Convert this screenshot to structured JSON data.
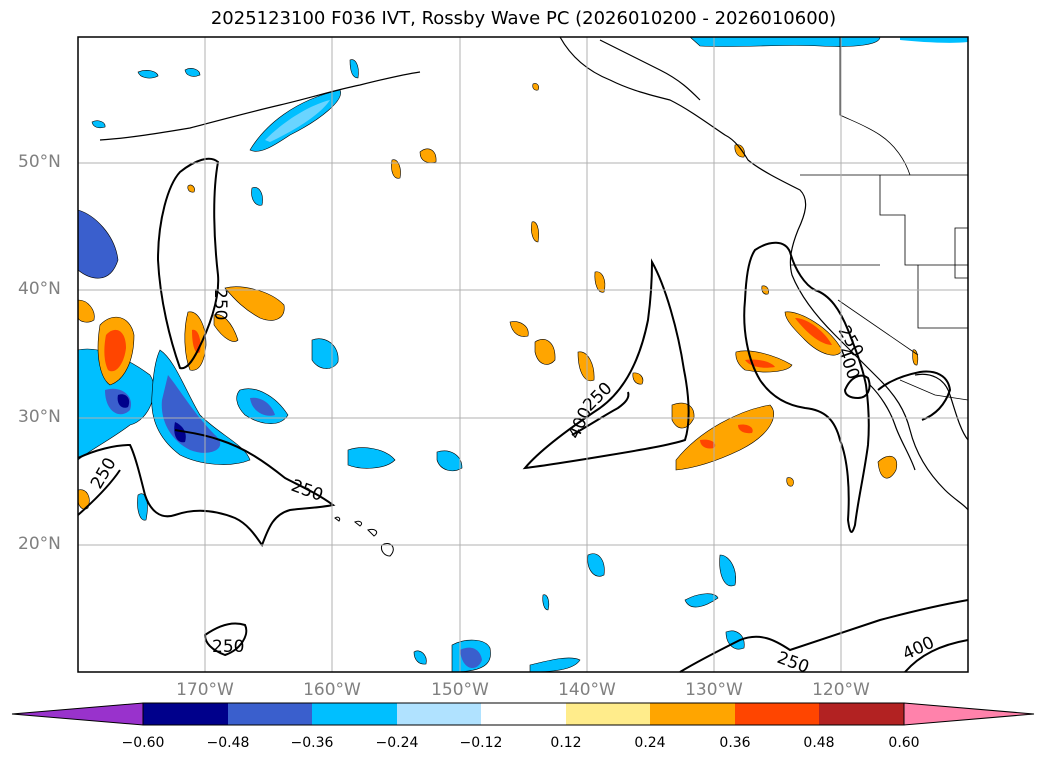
{
  "title": "2025123100 F036 IVT, Rossby Wave PC (2026010200 - 2026010600)",
  "map": {
    "lat_labels": [
      "50°N",
      "40°N",
      "30°N",
      "20°N"
    ],
    "lon_labels": [
      "170°W",
      "160°W",
      "150°W",
      "140°W",
      "130°W",
      "120°W"
    ],
    "contour_labels": [
      "250",
      "250",
      "250",
      "250",
      "250",
      "400",
      "250",
      "250",
      "400",
      "250",
      "400"
    ],
    "colors": {
      "frame": "#000000",
      "grid": "#b0b0b0",
      "coast": "#000000",
      "contour": "#000000"
    }
  },
  "colorbar": {
    "ticks": [
      "−0.60",
      "−0.48",
      "−0.36",
      "−0.24",
      "−0.12",
      "0.12",
      "0.24",
      "0.36",
      "0.48",
      "0.60"
    ],
    "colors": [
      "#9932cc",
      "#00008b",
      "#3a5fcd",
      "#00bfff",
      "#b0e2ff",
      "#ffffff",
      "#ffec8b",
      "#ffa500",
      "#ff4500",
      "#b22222",
      "#ff82ab"
    ]
  }
}
